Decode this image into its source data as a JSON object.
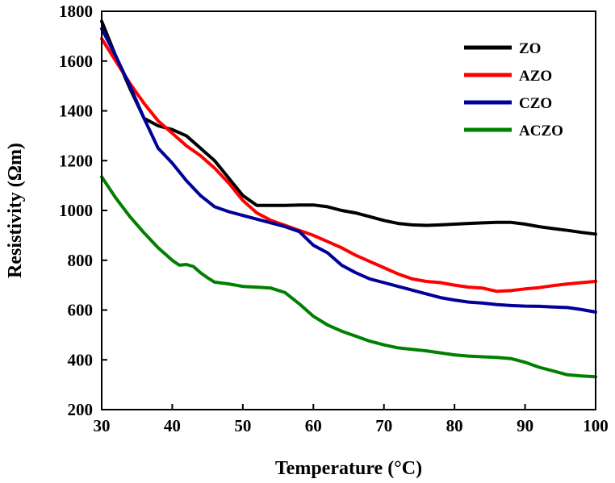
{
  "chart_data": {
    "type": "line",
    "title": "",
    "xlabel": "Temperature (°C)",
    "ylabel": "Resistivity (Ωm)",
    "xlim": [
      30,
      100
    ],
    "ylim": [
      200,
      1800
    ],
    "xticks": [
      30,
      40,
      50,
      60,
      70,
      80,
      90,
      100
    ],
    "yticks": [
      200,
      400,
      600,
      800,
      1000,
      1200,
      1400,
      1600,
      1800
    ],
    "legend_position": "top-right",
    "grid": false,
    "series": [
      {
        "name": "ZO",
        "color": "#000000",
        "x": [
          30,
          32,
          34,
          36,
          38,
          40,
          42,
          44,
          46,
          48,
          50,
          52,
          54,
          56,
          58,
          60,
          62,
          64,
          66,
          68,
          70,
          72,
          74,
          76,
          78,
          80,
          82,
          84,
          86,
          88,
          90,
          92,
          94,
          96,
          98,
          100
        ],
        "y": [
          1760,
          1620,
          1490,
          1370,
          1340,
          1325,
          1300,
          1250,
          1200,
          1130,
          1060,
          1020,
          1020,
          1020,
          1022,
          1022,
          1015,
          1000,
          990,
          975,
          960,
          948,
          942,
          940,
          942,
          945,
          948,
          950,
          952,
          952,
          945,
          935,
          927,
          920,
          912,
          905
        ]
      },
      {
        "name": "AZO",
        "color": "#ff0000",
        "x": [
          30,
          32,
          34,
          36,
          38,
          40,
          42,
          44,
          46,
          48,
          50,
          52,
          54,
          56,
          58,
          60,
          62,
          64,
          66,
          68,
          70,
          72,
          74,
          76,
          78,
          80,
          82,
          84,
          86,
          88,
          90,
          92,
          94,
          96,
          98,
          100
        ],
        "y": [
          1690,
          1600,
          1510,
          1430,
          1360,
          1310,
          1260,
          1220,
          1170,
          1110,
          1040,
          990,
          960,
          940,
          920,
          900,
          875,
          850,
          820,
          795,
          770,
          745,
          725,
          715,
          710,
          700,
          692,
          688,
          675,
          678,
          685,
          690,
          698,
          705,
          710,
          715
        ]
      },
      {
        "name": "CZO",
        "color": "#000099",
        "x": [
          30,
          32,
          34,
          36,
          38,
          40,
          42,
          44,
          46,
          48,
          50,
          52,
          54,
          56,
          58,
          60,
          62,
          64,
          66,
          68,
          70,
          72,
          74,
          76,
          78,
          80,
          82,
          84,
          86,
          88,
          90,
          92,
          94,
          96,
          98,
          100
        ],
        "y": [
          1730,
          1620,
          1500,
          1370,
          1250,
          1190,
          1120,
          1060,
          1015,
          995,
          980,
          965,
          950,
          935,
          915,
          860,
          830,
          780,
          750,
          725,
          710,
          695,
          680,
          665,
          650,
          640,
          632,
          628,
          622,
          618,
          616,
          615,
          612,
          610,
          602,
          592
        ]
      },
      {
        "name": "ACZO",
        "color": "#008000",
        "x": [
          30,
          32,
          34,
          36,
          38,
          40,
          41,
          42,
          43,
          44,
          45,
          46,
          48,
          50,
          52,
          54,
          56,
          58,
          60,
          62,
          64,
          66,
          68,
          70,
          72,
          74,
          76,
          78,
          80,
          82,
          84,
          86,
          88,
          90,
          92,
          94,
          96,
          98,
          100
        ],
        "y": [
          1135,
          1050,
          975,
          910,
          850,
          800,
          780,
          783,
          775,
          750,
          730,
          712,
          705,
          695,
          692,
          688,
          670,
          625,
          575,
          540,
          515,
          495,
          475,
          460,
          448,
          442,
          436,
          428,
          420,
          415,
          412,
          410,
          405,
          390,
          370,
          355,
          340,
          335,
          332
        ]
      }
    ]
  }
}
